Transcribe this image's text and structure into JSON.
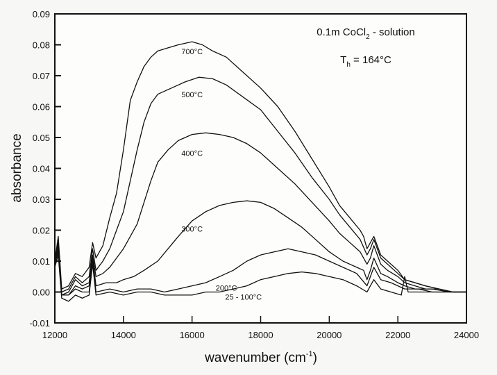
{
  "chart_data": {
    "type": "line",
    "title": "",
    "xlabel": "wavenumber (cm",
    "xlabel_sup": "-1",
    "xlabel_close": ")",
    "ylabel": "absorbance",
    "xlim": [
      12000,
      24000
    ],
    "ylim": [
      -0.01,
      0.09
    ],
    "grid": false,
    "x_ticks": [
      "12000",
      "14000",
      "16000",
      "18000",
      "20000",
      "22000",
      "24000"
    ],
    "x_tick_values": [
      12000,
      14000,
      16000,
      18000,
      20000,
      22000,
      24000
    ],
    "y_ticks": [
      "0.09",
      "0.08",
      "0.07",
      "0.06",
      "0.05",
      "0.04",
      "0.03",
      "0.02",
      "0.01",
      "0.00",
      "-0.01"
    ],
    "y_tick_values": [
      0.09,
      0.08,
      0.07,
      0.06,
      0.05,
      0.04,
      0.03,
      0.02,
      0.01,
      0.0,
      -0.01
    ],
    "annotations": {
      "line1_main": "0.1m CoCl",
      "line1_sub": "2",
      "line1_rest": " - solution",
      "line2_main": "T",
      "line2_sub": "h",
      "line2_rest": " = 164°C"
    },
    "series": [
      {
        "name": "700°C",
        "label": "700°C",
        "label_at": [
          16000,
          0.077
        ],
        "points": [
          [
            12000,
            0.01
          ],
          [
            12100,
            0.018
          ],
          [
            12200,
            0.001
          ],
          [
            12400,
            0.002
          ],
          [
            12600,
            0.006
          ],
          [
            12800,
            0.005
          ],
          [
            13000,
            0.008
          ],
          [
            13100,
            0.016
          ],
          [
            13200,
            0.011
          ],
          [
            13400,
            0.015
          ],
          [
            13600,
            0.024
          ],
          [
            13800,
            0.032
          ],
          [
            14000,
            0.046
          ],
          [
            14200,
            0.062
          ],
          [
            14400,
            0.068
          ],
          [
            14600,
            0.073
          ],
          [
            14800,
            0.076
          ],
          [
            15000,
            0.078
          ],
          [
            15300,
            0.079
          ],
          [
            15600,
            0.08
          ],
          [
            16000,
            0.081
          ],
          [
            16300,
            0.08
          ],
          [
            16600,
            0.078
          ],
          [
            17000,
            0.076
          ],
          [
            17500,
            0.071
          ],
          [
            18000,
            0.066
          ],
          [
            18500,
            0.06
          ],
          [
            19000,
            0.052
          ],
          [
            19500,
            0.043
          ],
          [
            20000,
            0.034
          ],
          [
            20300,
            0.028
          ],
          [
            20600,
            0.024
          ],
          [
            20900,
            0.02
          ],
          [
            21000,
            0.018
          ],
          [
            21100,
            0.014
          ],
          [
            21200,
            0.016
          ],
          [
            21300,
            0.018
          ],
          [
            21500,
            0.012
          ],
          [
            21700,
            0.01
          ],
          [
            22000,
            0.007
          ],
          [
            22200,
            0.004
          ],
          [
            22500,
            0.003
          ],
          [
            22800,
            0.002
          ],
          [
            23200,
            0.001
          ],
          [
            23600,
            0.0
          ],
          [
            24000,
            0.0
          ]
        ]
      },
      {
        "name": "500°C",
        "label": "500°C",
        "label_at": [
          16000,
          0.063
        ],
        "points": [
          [
            12000,
            0.01
          ],
          [
            12100,
            0.016
          ],
          [
            12200,
            0.0
          ],
          [
            12400,
            0.001
          ],
          [
            12600,
            0.005
          ],
          [
            12800,
            0.003
          ],
          [
            13000,
            0.005
          ],
          [
            13100,
            0.014
          ],
          [
            13200,
            0.007
          ],
          [
            13400,
            0.01
          ],
          [
            13600,
            0.014
          ],
          [
            13800,
            0.02
          ],
          [
            14000,
            0.026
          ],
          [
            14200,
            0.036
          ],
          [
            14400,
            0.046
          ],
          [
            14600,
            0.055
          ],
          [
            14800,
            0.061
          ],
          [
            15000,
            0.064
          ],
          [
            15400,
            0.066
          ],
          [
            15800,
            0.068
          ],
          [
            16200,
            0.0695
          ],
          [
            16600,
            0.069
          ],
          [
            17000,
            0.067
          ],
          [
            17500,
            0.063
          ],
          [
            18000,
            0.059
          ],
          [
            18500,
            0.052
          ],
          [
            19000,
            0.045
          ],
          [
            19500,
            0.037
          ],
          [
            20000,
            0.03
          ],
          [
            20300,
            0.025
          ],
          [
            20600,
            0.021
          ],
          [
            20900,
            0.017
          ],
          [
            21100,
            0.012
          ],
          [
            21200,
            0.014
          ],
          [
            21300,
            0.017
          ],
          [
            21500,
            0.011
          ],
          [
            21700,
            0.009
          ],
          [
            22000,
            0.006
          ],
          [
            22200,
            0.004
          ],
          [
            22500,
            0.003
          ],
          [
            22800,
            0.002
          ],
          [
            23200,
            0.001
          ],
          [
            23600,
            0.0
          ],
          [
            24000,
            0.0
          ]
        ]
      },
      {
        "name": "400°C",
        "label": "400°C",
        "label_at": [
          16000,
          0.044
        ],
        "points": [
          [
            12000,
            0.01
          ],
          [
            12100,
            0.015
          ],
          [
            12200,
            -0.001
          ],
          [
            12400,
            0.0
          ],
          [
            12600,
            0.004
          ],
          [
            12800,
            0.002
          ],
          [
            13000,
            0.003
          ],
          [
            13100,
            0.012
          ],
          [
            13200,
            0.005
          ],
          [
            13400,
            0.006
          ],
          [
            13600,
            0.008
          ],
          [
            13800,
            0.011
          ],
          [
            14000,
            0.014
          ],
          [
            14200,
            0.018
          ],
          [
            14400,
            0.022
          ],
          [
            14600,
            0.029
          ],
          [
            14800,
            0.036
          ],
          [
            15000,
            0.042
          ],
          [
            15300,
            0.046
          ],
          [
            15600,
            0.049
          ],
          [
            16000,
            0.051
          ],
          [
            16400,
            0.0515
          ],
          [
            16800,
            0.051
          ],
          [
            17200,
            0.05
          ],
          [
            17600,
            0.048
          ],
          [
            18000,
            0.045
          ],
          [
            18500,
            0.04
          ],
          [
            19000,
            0.035
          ],
          [
            19500,
            0.029
          ],
          [
            20000,
            0.023
          ],
          [
            20300,
            0.019
          ],
          [
            20600,
            0.016
          ],
          [
            20900,
            0.013
          ],
          [
            21100,
            0.009
          ],
          [
            21200,
            0.011
          ],
          [
            21300,
            0.015
          ],
          [
            21500,
            0.009
          ],
          [
            21700,
            0.007
          ],
          [
            22000,
            0.005
          ],
          [
            22200,
            0.003
          ],
          [
            22500,
            0.002
          ],
          [
            22800,
            0.001
          ],
          [
            23200,
            0.001
          ],
          [
            23600,
            0.0
          ],
          [
            24000,
            0.0
          ]
        ]
      },
      {
        "name": "300°C",
        "label": "300°C",
        "label_at": [
          16000,
          0.0195
        ],
        "points": [
          [
            12000,
            0.009
          ],
          [
            12100,
            0.014
          ],
          [
            12200,
            -0.001
          ],
          [
            12400,
            -0.001
          ],
          [
            12600,
            0.002
          ],
          [
            12800,
            0.001
          ],
          [
            13000,
            0.002
          ],
          [
            13100,
            0.011
          ],
          [
            13200,
            0.002
          ],
          [
            13500,
            0.003
          ],
          [
            13800,
            0.003
          ],
          [
            14000,
            0.004
          ],
          [
            14300,
            0.005
          ],
          [
            14600,
            0.007
          ],
          [
            15000,
            0.01
          ],
          [
            15300,
            0.014
          ],
          [
            15600,
            0.018
          ],
          [
            16000,
            0.023
          ],
          [
            16400,
            0.026
          ],
          [
            16800,
            0.028
          ],
          [
            17200,
            0.029
          ],
          [
            17600,
            0.0295
          ],
          [
            18000,
            0.029
          ],
          [
            18400,
            0.027
          ],
          [
            18800,
            0.024
          ],
          [
            19200,
            0.021
          ],
          [
            19600,
            0.017
          ],
          [
            20000,
            0.013
          ],
          [
            20400,
            0.01
          ],
          [
            20800,
            0.008
          ],
          [
            21000,
            0.007
          ],
          [
            21100,
            0.004
          ],
          [
            21200,
            0.007
          ],
          [
            21300,
            0.011
          ],
          [
            21500,
            0.006
          ],
          [
            21700,
            0.005
          ],
          [
            22000,
            0.003
          ],
          [
            22200,
            0.002
          ],
          [
            22500,
            0.001
          ],
          [
            23000,
            0.001
          ],
          [
            23500,
            0.0
          ],
          [
            24000,
            0.0
          ]
        ]
      },
      {
        "name": "200°C",
        "label": "200°C",
        "label_at": [
          17000,
          0.0005
        ],
        "points": [
          [
            12000,
            0.009
          ],
          [
            12100,
            0.013
          ],
          [
            12200,
            -0.001
          ],
          [
            12400,
            -0.001
          ],
          [
            12600,
            0.001
          ],
          [
            12800,
            0.0
          ],
          [
            13000,
            0.0
          ],
          [
            13100,
            0.01
          ],
          [
            13200,
            0.0
          ],
          [
            13600,
            0.001
          ],
          [
            14000,
            0.0
          ],
          [
            14400,
            0.001
          ],
          [
            14800,
            0.001
          ],
          [
            15200,
            0.0
          ],
          [
            15600,
            0.001
          ],
          [
            16000,
            0.002
          ],
          [
            16400,
            0.003
          ],
          [
            16800,
            0.005
          ],
          [
            17200,
            0.007
          ],
          [
            17600,
            0.01
          ],
          [
            18000,
            0.012
          ],
          [
            18400,
            0.013
          ],
          [
            18800,
            0.014
          ],
          [
            19200,
            0.013
          ],
          [
            19600,
            0.012
          ],
          [
            20000,
            0.01
          ],
          [
            20400,
            0.008
          ],
          [
            20800,
            0.006
          ],
          [
            21100,
            0.002
          ],
          [
            21200,
            0.005
          ],
          [
            21300,
            0.008
          ],
          [
            21500,
            0.004
          ],
          [
            21800,
            0.003
          ],
          [
            22000,
            0.002
          ],
          [
            22200,
            0.001
          ],
          [
            22600,
            0.001
          ],
          [
            23000,
            0.0
          ],
          [
            24000,
            0.0
          ]
        ]
      },
      {
        "name": "25 - 100°C",
        "label": "25 - 100°C",
        "label_at": [
          17500,
          -0.0025
        ],
        "points": [
          [
            12000,
            0.008
          ],
          [
            12100,
            0.012
          ],
          [
            12200,
            -0.002
          ],
          [
            12400,
            -0.003
          ],
          [
            12600,
            -0.001
          ],
          [
            12800,
            -0.002
          ],
          [
            13000,
            -0.001
          ],
          [
            13100,
            0.009
          ],
          [
            13200,
            -0.001
          ],
          [
            13600,
            0.0
          ],
          [
            14000,
            -0.001
          ],
          [
            14400,
            0.0
          ],
          [
            14800,
            0.0
          ],
          [
            15200,
            -0.001
          ],
          [
            15600,
            -0.001
          ],
          [
            16000,
            -0.001
          ],
          [
            16400,
            0.0
          ],
          [
            16800,
            0.0
          ],
          [
            17200,
            0.001
          ],
          [
            17600,
            0.002
          ],
          [
            18000,
            0.004
          ],
          [
            18400,
            0.005
          ],
          [
            18800,
            0.006
          ],
          [
            19200,
            0.0065
          ],
          [
            19600,
            0.006
          ],
          [
            20000,
            0.005
          ],
          [
            20400,
            0.004
          ],
          [
            20800,
            0.002
          ],
          [
            21100,
            0.0
          ],
          [
            21200,
            0.002
          ],
          [
            21300,
            0.004
          ],
          [
            21500,
            0.001
          ],
          [
            21800,
            0.0
          ],
          [
            22100,
            -0.001
          ],
          [
            22200,
            0.005
          ],
          [
            22300,
            0.0
          ],
          [
            22600,
            0.0
          ],
          [
            23000,
            0.0
          ],
          [
            24000,
            0.0
          ]
        ]
      }
    ]
  }
}
